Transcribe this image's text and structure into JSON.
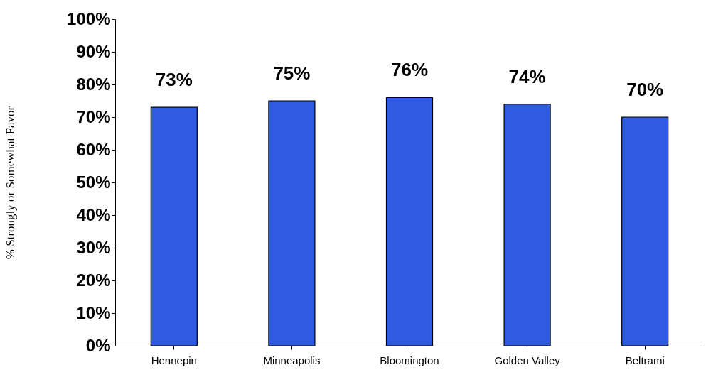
{
  "chart_data": {
    "type": "bar",
    "ylabel": "% Strongly or Somewhat Favor",
    "categories": [
      "Hennepin",
      "Minneapolis",
      "Bloomington",
      "Golden Valley",
      "Beltrami"
    ],
    "values": [
      73,
      75,
      76,
      74,
      70
    ],
    "color": "#2f5be0",
    "value_labels": [
      "73%",
      "75%",
      "76%",
      "74%",
      "70%"
    ],
    "ylim": [
      0,
      100
    ],
    "yticks": [
      {
        "value": 0,
        "label": "0%"
      },
      {
        "value": 10,
        "label": "10%"
      },
      {
        "value": 20,
        "label": "20%"
      },
      {
        "value": 30,
        "label": "30%"
      },
      {
        "value": 40,
        "label": "40%"
      },
      {
        "value": 50,
        "label": "50%"
      },
      {
        "value": 60,
        "label": "60%"
      },
      {
        "value": 70,
        "label": "70%"
      },
      {
        "value": 80,
        "label": "80%"
      },
      {
        "value": 90,
        "label": "90%"
      },
      {
        "value": 100,
        "label": "100%"
      }
    ],
    "grid": false
  }
}
